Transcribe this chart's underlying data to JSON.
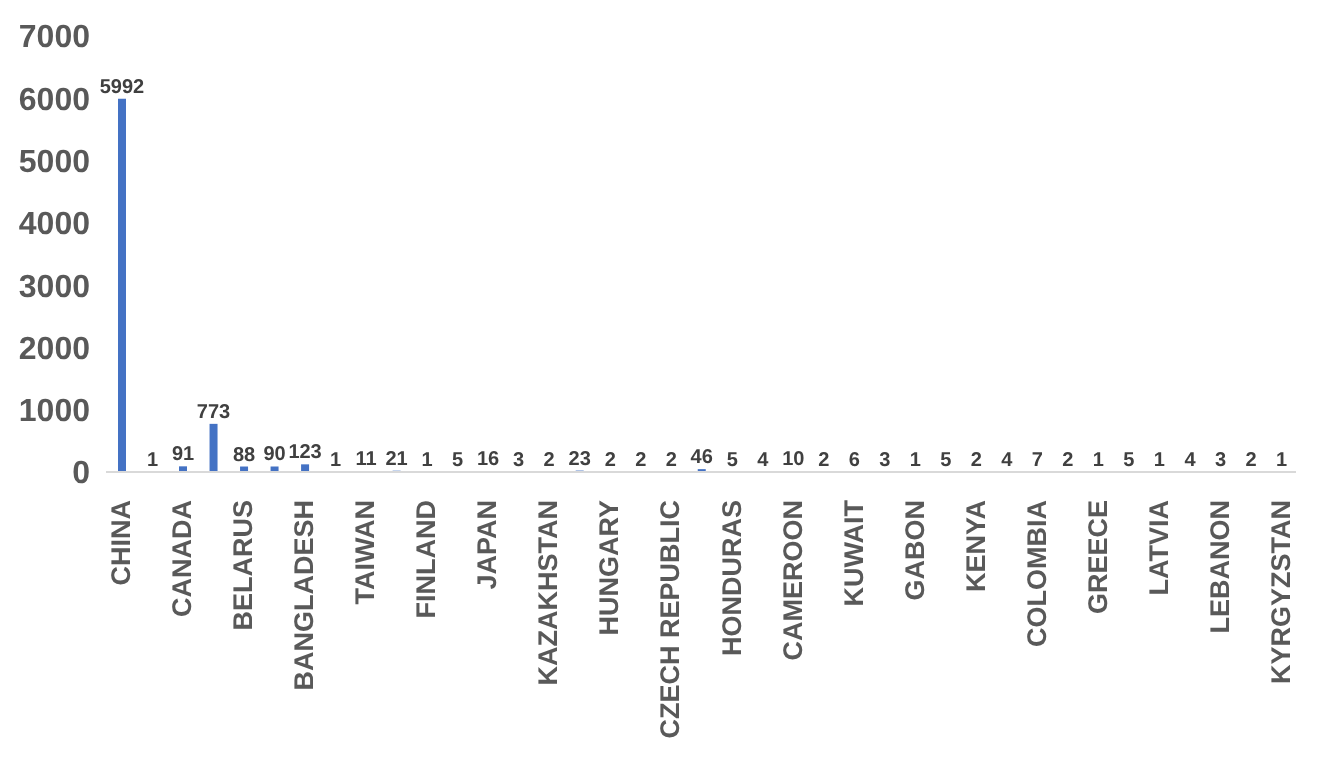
{
  "chart_data": {
    "type": "bar",
    "categories": [
      "CHINA",
      null,
      "CANADA",
      null,
      "BELARUS",
      null,
      "BANGLADESH",
      null,
      "TAIWAN",
      null,
      "FINLAND",
      null,
      "JAPAN",
      null,
      "KAZAKHSTAN",
      null,
      "HUNGARY",
      null,
      "CZECH REPUBLIC",
      null,
      "HONDURAS",
      null,
      "CAMEROON",
      null,
      "KUWAIT",
      null,
      "GABON",
      null,
      "KENYA",
      null,
      "COLOMBIA",
      null,
      "GREECE",
      null,
      "LATVIA",
      null,
      "LEBANON",
      null,
      "KYRGYZSTAN"
    ],
    "values": [
      5992,
      1,
      91,
      773,
      88,
      90,
      123,
      1,
      11,
      21,
      1,
      5,
      16,
      3,
      2,
      23,
      2,
      2,
      2,
      46,
      5,
      4,
      10,
      2,
      6,
      3,
      1,
      5,
      2,
      4,
      7,
      2,
      1,
      5,
      1,
      4,
      3,
      2,
      1
    ],
    "color": "#4472c4",
    "ylim": [
      0,
      7000
    ],
    "yticks": [
      0,
      1000,
      2000,
      3000,
      4000,
      5000,
      6000,
      7000
    ],
    "data_labels": true
  }
}
